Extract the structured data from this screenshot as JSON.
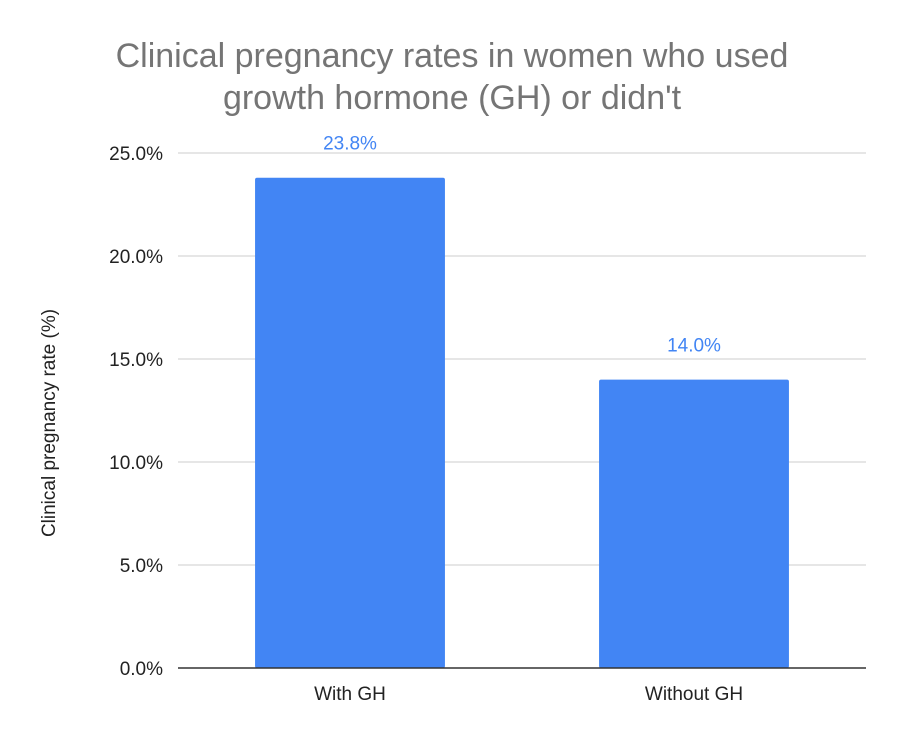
{
  "chart_data": {
    "type": "bar",
    "title_lines": [
      "Clinical pregnancy rates in women who used",
      "growth hormone (GH) or didn't"
    ],
    "xlabel": "",
    "ylabel": "Clinical pregnancy rate (%)",
    "categories": [
      "With GH",
      "Without GH"
    ],
    "values": [
      23.8,
      14.0
    ],
    "data_labels": [
      "23.8%",
      "14.0%"
    ],
    "ylim": [
      0,
      25
    ],
    "yticks": [
      0,
      5,
      10,
      15,
      20,
      25
    ],
    "ytick_labels": [
      "0.0%",
      "5.0%",
      "10.0%",
      "15.0%",
      "20.0%",
      "25.0%"
    ],
    "grid": true,
    "legend": "none",
    "bar_color": "#4285f4",
    "data_label_color": "#4285f4"
  }
}
